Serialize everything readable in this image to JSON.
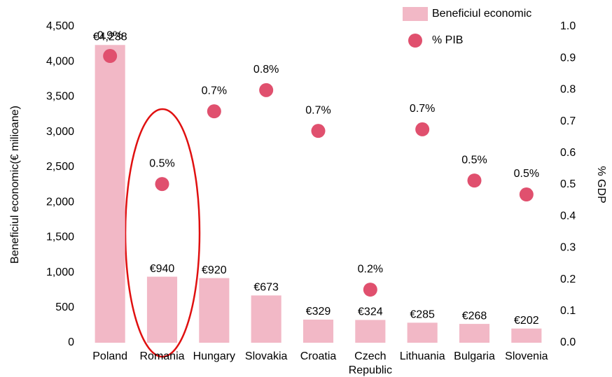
{
  "chart_data": {
    "type": "bar",
    "categories": [
      "Poland",
      "Romania",
      "Hungary",
      "Slovakia",
      "Croatia",
      "Czech Republic",
      "Lithuania",
      "Bulgaria",
      "Slovenia"
    ],
    "series": [
      {
        "name": "Beneficiul economic",
        "type": "bar",
        "color": "#f2b8c6",
        "values": [
          4238,
          940,
          920,
          673,
          329,
          324,
          285,
          268,
          202
        ],
        "value_labels": [
          "€4,238",
          "€940",
          "€920",
          "€673",
          "€329",
          "€324",
          "€285",
          "€268",
          "€202"
        ]
      },
      {
        "name": "% PIB",
        "type": "scatter",
        "axis": "y2",
        "color": "#e0506e",
        "values": [
          0.907,
          0.502,
          0.732,
          0.799,
          0.67,
          0.168,
          0.675,
          0.513,
          0.469
        ],
        "value_labels": [
          "0.9%",
          "0.5%",
          "0.7%",
          "0.8%",
          "0.7%",
          "0.2%",
          "0.7%",
          "0.5%",
          "0.5%"
        ]
      }
    ],
    "ylabel": "Beneficiul economic(€ milioane)",
    "y2label": "% GDP",
    "ylim": [
      0,
      4500
    ],
    "yticks": [
      0,
      500,
      {
        "value": 1000,
        "label": "1,000"
      },
      {
        "value": 1500,
        "label": "1,500"
      },
      {
        "value": 2000,
        "label": "2,000"
      },
      {
        "value": 2500,
        "label": "2,500"
      },
      {
        "value": 3000,
        "label": "3,000"
      },
      {
        "value": 3500,
        "label": "3,500"
      },
      {
        "value": 4000,
        "label": "4,000"
      },
      {
        "value": 4500,
        "label": "4,500"
      }
    ],
    "y2lim": [
      0,
      1
    ],
    "y2ticks": [
      {
        "value": 0,
        "label": "0.0"
      },
      0.1,
      0.2,
      0.3,
      0.4,
      0.5,
      0.6,
      0.7,
      0.8,
      0.9,
      {
        "value": 1,
        "label": "1.0"
      }
    ],
    "grid": false,
    "legend": "upper right"
  }
}
